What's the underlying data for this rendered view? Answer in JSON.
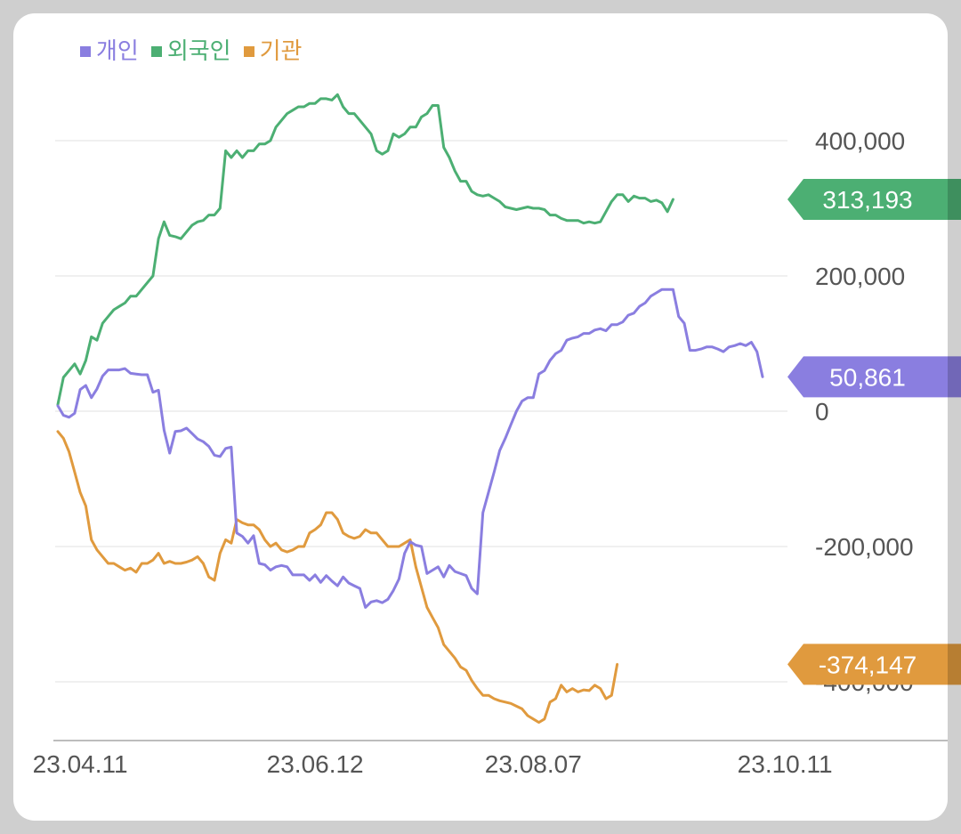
{
  "chart_data": {
    "type": "line",
    "title": "",
    "xlabel": "",
    "ylabel": "",
    "ylim": [
      -480000,
      470000
    ],
    "y_ticks": [
      {
        "value": 400000,
        "label": "400,000"
      },
      {
        "value": 200000,
        "label": "200,000"
      },
      {
        "value": 0,
        "label": "0"
      },
      {
        "value": -200000,
        "label": "-200,000"
      },
      {
        "value": -400000,
        "label": "-400,000"
      }
    ],
    "x_ticks": [
      {
        "index": 4,
        "label": "23.04.11"
      },
      {
        "index": 46,
        "label": "23.06.12"
      },
      {
        "index": 85,
        "label": "23.08.07"
      },
      {
        "index": 130,
        "label": "23.10.11"
      }
    ],
    "legend_position": "top-left",
    "grid": true,
    "series": [
      {
        "name": "개인",
        "color": "#8a7ee0",
        "last_label": "50,861",
        "values": [
          8000,
          -6000,
          -9000,
          -3000,
          32000,
          38000,
          20000,
          33000,
          52000,
          61000,
          61000,
          61000,
          63000,
          56000,
          55000,
          54000,
          54000,
          28000,
          31000,
          -28000,
          -62000,
          -30000,
          -29000,
          -25000,
          -33000,
          -41000,
          -45000,
          -52000,
          -65000,
          -67000,
          -55000,
          -53000,
          -180000,
          -185000,
          -195000,
          -184000,
          -225000,
          -227000,
          -235000,
          -230000,
          -228000,
          -230000,
          -242000,
          -242000,
          -242000,
          -250000,
          -242000,
          -253000,
          -243000,
          -251000,
          -258000,
          -245000,
          -254000,
          -258000,
          -262000,
          -290000,
          -282000,
          -280000,
          -283000,
          -278000,
          -265000,
          -248000,
          -210000,
          -193000,
          -198000,
          -200000,
          -240000,
          -235000,
          -230000,
          -245000,
          -228000,
          -237000,
          -240000,
          -243000,
          -262000,
          -270000,
          -150000,
          -120000,
          -90000,
          -58000,
          -40000,
          -20000,
          0,
          15000,
          20000,
          20000,
          55000,
          60000,
          75000,
          85000,
          90000,
          105000,
          108000,
          110000,
          115000,
          115000,
          120000,
          122000,
          119000,
          128000,
          128000,
          132000,
          142000,
          145000,
          155000,
          160000,
          170000,
          175000,
          180000,
          180000,
          180000,
          140000,
          130000,
          90000,
          90000,
          92000,
          95000,
          95000,
          92000,
          88000,
          95000,
          97000,
          100000,
          97000,
          102000,
          88000,
          50861
        ]
      },
      {
        "name": "외국인",
        "color": "#4caf73",
        "last_label": "313,193",
        "values": [
          10000,
          50000,
          60000,
          70000,
          55000,
          75000,
          110000,
          105000,
          130000,
          140000,
          150000,
          155000,
          160000,
          170000,
          170000,
          180000,
          190000,
          200000,
          255000,
          280000,
          260000,
          258000,
          255000,
          265000,
          275000,
          280000,
          282000,
          290000,
          290000,
          300000,
          385000,
          375000,
          385000,
          375000,
          385000,
          385000,
          395000,
          395000,
          400000,
          420000,
          430000,
          440000,
          445000,
          450000,
          450000,
          455000,
          455000,
          462000,
          462000,
          460000,
          468000,
          450000,
          440000,
          440000,
          430000,
          420000,
          410000,
          385000,
          380000,
          385000,
          410000,
          405000,
          410000,
          420000,
          420000,
          435000,
          440000,
          452000,
          452000,
          390000,
          375000,
          355000,
          340000,
          340000,
          325000,
          320000,
          318000,
          320000,
          315000,
          310000,
          302000,
          300000,
          298000,
          300000,
          302000,
          300000,
          300000,
          298000,
          290000,
          290000,
          285000,
          282000,
          282000,
          282000,
          278000,
          280000,
          278000,
          280000,
          295000,
          310000,
          320000,
          320000,
          310000,
          318000,
          315000,
          315000,
          310000,
          312000,
          308000,
          295000,
          313193
        ]
      },
      {
        "name": "기관",
        "color": "#e09a3e",
        "last_label": "-374,147",
        "values": [
          -30000,
          -40000,
          -60000,
          -90000,
          -120000,
          -140000,
          -190000,
          -205000,
          -215000,
          -225000,
          -225000,
          -230000,
          -235000,
          -232000,
          -238000,
          -225000,
          -225000,
          -220000,
          -210000,
          -225000,
          -222000,
          -225000,
          -225000,
          -223000,
          -220000,
          -215000,
          -225000,
          -245000,
          -250000,
          -210000,
          -190000,
          -195000,
          -160000,
          -165000,
          -168000,
          -168000,
          -175000,
          -190000,
          -200000,
          -195000,
          -205000,
          -208000,
          -205000,
          -200000,
          -200000,
          -180000,
          -175000,
          -168000,
          -150000,
          -150000,
          -160000,
          -180000,
          -185000,
          -188000,
          -185000,
          -175000,
          -180000,
          -180000,
          -190000,
          -200000,
          -200000,
          -200000,
          -195000,
          -190000,
          -230000,
          -260000,
          -290000,
          -305000,
          -320000,
          -345000,
          -355000,
          -365000,
          -378000,
          -383000,
          -398000,
          -410000,
          -420000,
          -420000,
          -425000,
          -428000,
          -430000,
          -432000,
          -436000,
          -440000,
          -450000,
          -455000,
          -460000,
          -455000,
          -430000,
          -425000,
          -405000,
          -415000,
          -410000,
          -415000,
          -412000,
          -413000,
          -405000,
          -410000,
          -425000,
          -420000,
          -374147
        ]
      }
    ]
  }
}
